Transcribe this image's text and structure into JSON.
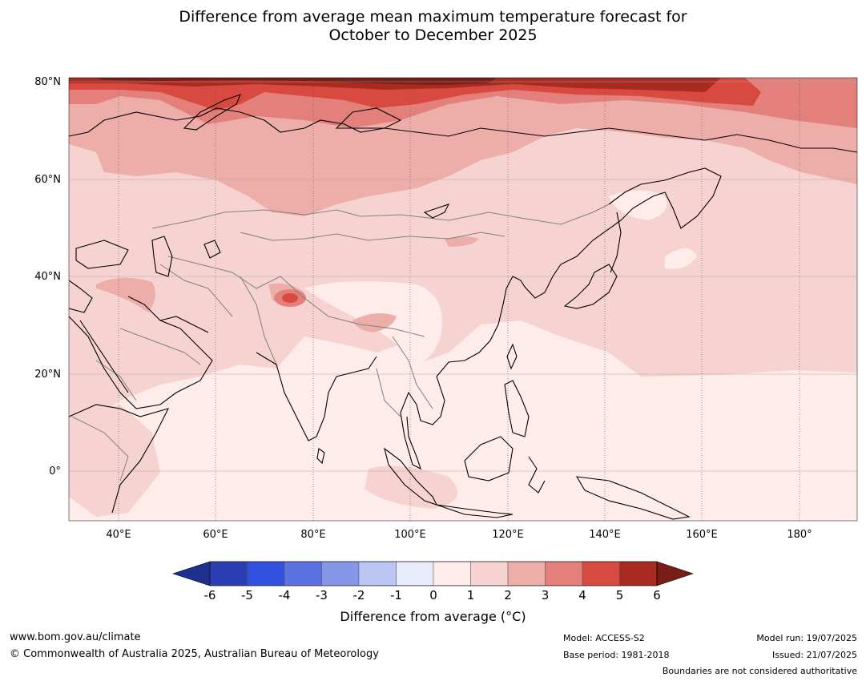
{
  "title_line1": "Difference from average mean maximum temperature forecast for",
  "title_line2": "October to December 2025",
  "map": {
    "lat_labels": [
      "80°N",
      "60°N",
      "40°N",
      "20°N",
      "0°"
    ],
    "lon_labels": [
      "40°E",
      "60°E",
      "80°E",
      "100°E",
      "120°E",
      "140°E",
      "160°E",
      "180°"
    ],
    "extent": {
      "lon": [
        30,
        192
      ],
      "lat": [
        -10,
        81
      ]
    }
  },
  "colorbar": {
    "label": "Difference from average (°C)",
    "ticks": [
      "-6",
      "-5",
      "-4",
      "-3",
      "-2",
      "-1",
      "0",
      "1",
      "2",
      "3",
      "4",
      "5",
      "6"
    ],
    "colors": [
      "#1f2f8f",
      "#2a3db2",
      "#3050df",
      "#5c72e3",
      "#8697ea",
      "#bcc6f2",
      "#e8ebfa",
      "#fdecea",
      "#f6d3d1",
      "#edaeaa",
      "#e4807b",
      "#d84a40",
      "#a82a20",
      "#7a1d16"
    ],
    "under_color": "#1f2f8f",
    "over_color": "#7a1d16"
  },
  "footer": {
    "website": "www.bom.gov.au/climate",
    "copyright": "© Commonwealth of Australia 2025, Australian Bureau of Meteorology",
    "model": "Model: ACCESS-S2",
    "base_period": "Base period: 1981-2018",
    "model_run": "Model run: 19/07/2025",
    "issued": "Issued: 21/07/2025",
    "disclaimer": "Boundaries are not considered authoritative"
  }
}
